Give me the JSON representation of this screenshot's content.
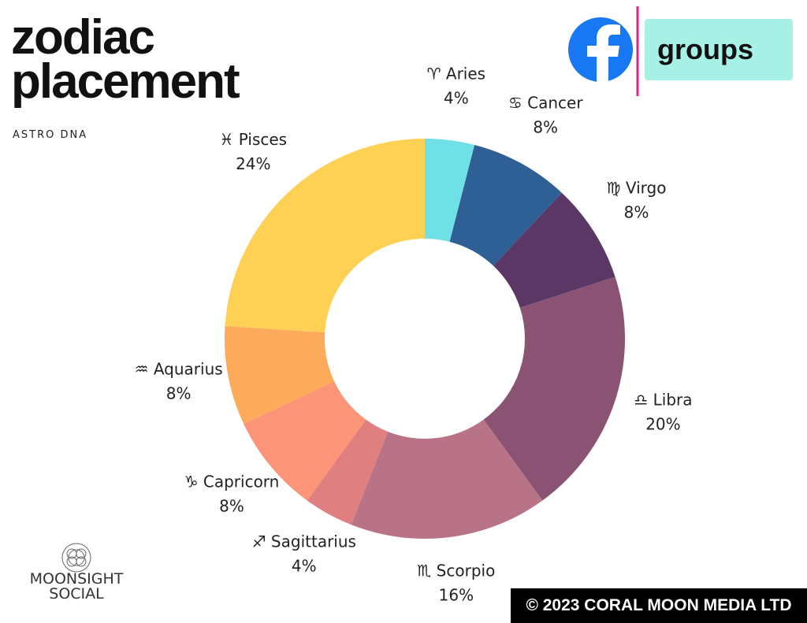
{
  "header": {
    "title": "zodiac placement",
    "subtitle": "ASTRO DNA",
    "badge": "groups"
  },
  "footer": {
    "logo": "MOONSIGHT SOCIAL",
    "copyright": "© 2023 CORAL MOON MEDIA LTD"
  },
  "chart_data": {
    "type": "donut",
    "categories": [
      "♈ Aries",
      "♋ Cancer",
      "♍ Virgo",
      "♎ Libra",
      "♏ Scorpio",
      "♐ Sagittarius",
      "♑ Capricorn",
      "♒ Aquarius",
      "♓ Pisces"
    ],
    "values": [
      4,
      8,
      8,
      20,
      16,
      4,
      8,
      8,
      24
    ],
    "value_labels": [
      "4%",
      "8%",
      "8%",
      "20%",
      "16%",
      "4%",
      "8%",
      "8%",
      "24%"
    ],
    "colors": [
      "#6ee0e6",
      "#2e6096",
      "#5b3766",
      "#8a5273",
      "#b87486",
      "#e07f80",
      "#fc9477",
      "#fdab5a",
      "#fed053"
    ]
  }
}
